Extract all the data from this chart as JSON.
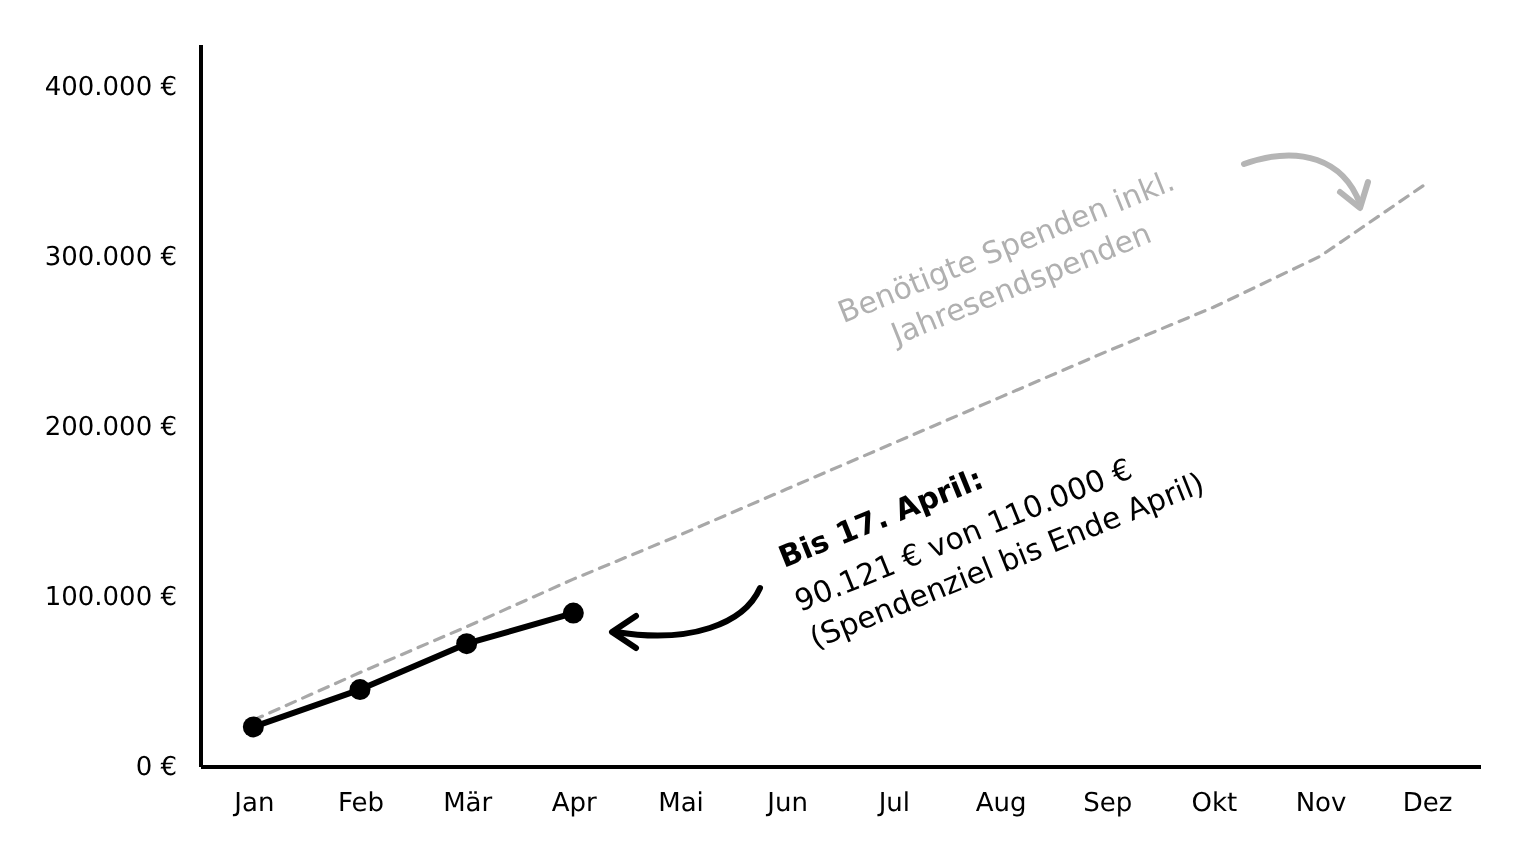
{
  "chart_data": {
    "type": "line",
    "categories": [
      "Jan",
      "Feb",
      "Mär",
      "Apr",
      "Mai",
      "Jun",
      "Jul",
      "Aug",
      "Sep",
      "Okt",
      "Nov",
      "Dez"
    ],
    "series": [
      {
        "color": "#a8a8a8",
        "line_style": "dashed",
        "marker": "none",
        "values": [
          27000,
          55000,
          82000,
          110000,
          136000,
          163000,
          190000,
          217000,
          244000,
          270000,
          300000,
          343000
        ]
      },
      {
        "color": "#000000",
        "line_style": "solid",
        "marker": "circle",
        "values": [
          23000,
          45000,
          72000,
          90000,
          null,
          null,
          null,
          null,
          null,
          null,
          null,
          null
        ]
      }
    ],
    "ylim": [
      0,
      425000
    ],
    "yticks": [
      {
        "value": 0,
        "label": "0 €"
      },
      {
        "value": 100000,
        "label": "100.000 €"
      },
      {
        "value": 200000,
        "label": "200.000 €"
      },
      {
        "value": 300000,
        "label": "300.000 €"
      },
      {
        "value": 400000,
        "label": "400.000 €"
      }
    ],
    "grid": false,
    "annotations": [
      "Benötigte Spenden inkl. Jahresendspenden",
      "Bis 17. April:",
      "90.121 € von 110.000 € (Spendenziel bis Ende April)"
    ]
  }
}
